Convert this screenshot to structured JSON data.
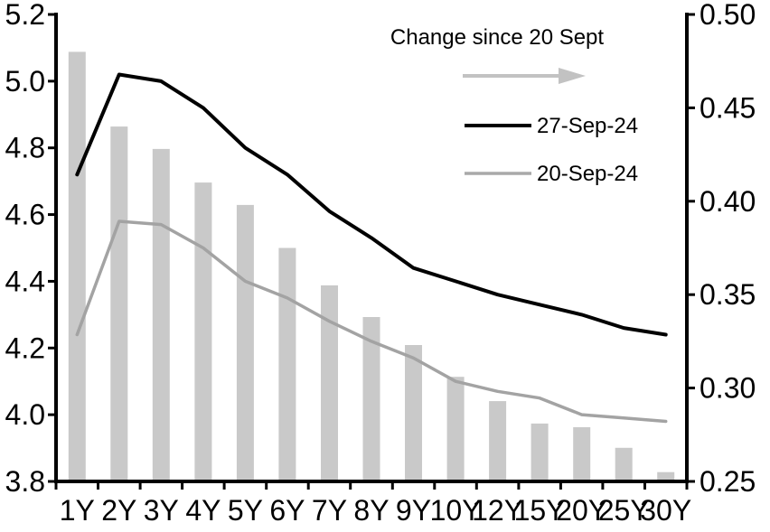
{
  "legend": {
    "title": "Change since 20 Sept",
    "series_27": {
      "label": "27-Sep-24"
    },
    "series_20": {
      "label": "20-Sep-24"
    }
  },
  "chart": {
    "colors": {
      "bar": "#c9c9c9",
      "line_27sep": "#000000",
      "line_20sep": "#a3a3a3",
      "legend_20_sample": "#a9a9a9",
      "arrow": "#c2c2c2",
      "axis": "#000000"
    }
  },
  "chart_data": {
    "type": "combo",
    "categories": [
      "1Y",
      "2Y",
      "3Y",
      "4Y",
      "5Y",
      "6Y",
      "7Y",
      "8Y",
      "9Y",
      "10Y",
      "12Y",
      "15Y",
      "20Y",
      "25Y",
      "30Y"
    ],
    "series": [
      {
        "name": "Change since 20 Sept",
        "type": "bar",
        "axis": "right",
        "values": [
          0.48,
          0.44,
          0.428,
          0.41,
          0.398,
          0.375,
          0.355,
          0.338,
          0.323,
          0.306,
          0.293,
          0.281,
          0.279,
          0.268,
          0.255
        ]
      },
      {
        "name": "27-Sep-24",
        "type": "line",
        "axis": "left",
        "values": [
          4.72,
          5.02,
          5.0,
          4.92,
          4.8,
          4.72,
          4.61,
          4.53,
          4.44,
          4.4,
          4.36,
          4.33,
          4.3,
          4.26,
          4.24
        ]
      },
      {
        "name": "20-Sep-24",
        "type": "line",
        "axis": "left",
        "values": [
          4.24,
          4.58,
          4.57,
          4.5,
          4.4,
          4.35,
          4.28,
          4.22,
          4.17,
          4.1,
          4.07,
          4.05,
          4.0,
          3.99,
          3.98
        ]
      }
    ],
    "left_axis": {
      "min": 3.8,
      "max": 5.2,
      "tick_labels": [
        "5.2",
        "5.0",
        "4.8",
        "4.6",
        "4.4",
        "4.2",
        "4.0",
        "3.8"
      ]
    },
    "right_axis": {
      "min": 0.25,
      "max": 0.5,
      "tick_labels": [
        "0.50",
        "0.45",
        "0.40",
        "0.35",
        "0.30",
        "0.25"
      ]
    },
    "grid": false,
    "legend_position": "top-right-inside",
    "xlabel": "",
    "ylabel_left": "",
    "ylabel_right": ""
  }
}
